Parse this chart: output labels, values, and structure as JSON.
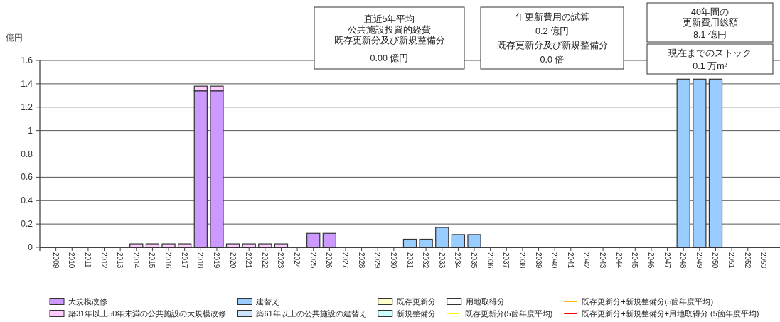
{
  "chart_data": {
    "type": "bar",
    "ylabel": "億円",
    "stacked": true,
    "grid": "y",
    "legend": "bottom",
    "categories": [
      "2009",
      "2010",
      "2011",
      "2012",
      "2013",
      "2014",
      "2015",
      "2016",
      "2017",
      "2018",
      "2019",
      "2020",
      "2021",
      "2022",
      "2023",
      "2024",
      "2025",
      "2026",
      "2027",
      "2028",
      "2029",
      "2030",
      "2031",
      "2032",
      "2033",
      "2034",
      "2035",
      "2036",
      "2037",
      "2038",
      "2039",
      "2040",
      "2041",
      "2042",
      "2043",
      "2044",
      "2045",
      "2046",
      "2047",
      "2048",
      "2049",
      "2050",
      "2051",
      "2052",
      "2053"
    ],
    "ylim": [
      0,
      1.6
    ],
    "yticks": [
      0,
      0.2,
      0.4,
      0.6,
      0.8,
      1,
      1.2,
      1.4,
      1.6
    ],
    "series": [
      {
        "name": "大規模改修",
        "color": "#cc99ff",
        "values": [
          null,
          null,
          null,
          null,
          null,
          null,
          null,
          null,
          null,
          1.34,
          1.34,
          null,
          null,
          null,
          null,
          null,
          0.12,
          0.12,
          null,
          null,
          null,
          null,
          null,
          null,
          null,
          null,
          null,
          null,
          null,
          null,
          null,
          null,
          null,
          null,
          null,
          null,
          null,
          null,
          null,
          null,
          null,
          null,
          null,
          null,
          null
        ]
      },
      {
        "name": "築31年以上50年未満の公共施設の大規模改修",
        "color": "#ffccff",
        "values": [
          null,
          null,
          null,
          null,
          null,
          0.03,
          0.03,
          0.03,
          0.03,
          0.04,
          0.04,
          0.03,
          0.03,
          0.03,
          0.03,
          null,
          null,
          null,
          null,
          null,
          null,
          null,
          null,
          null,
          null,
          null,
          null,
          null,
          null,
          null,
          null,
          null,
          null,
          null,
          null,
          null,
          null,
          null,
          null,
          null,
          null,
          null,
          null,
          null,
          null
        ]
      },
      {
        "name": "建替え",
        "color": "#99ccff",
        "values": [
          null,
          null,
          null,
          null,
          null,
          null,
          null,
          null,
          null,
          null,
          null,
          null,
          null,
          null,
          null,
          null,
          null,
          null,
          null,
          null,
          null,
          null,
          0.07,
          0.07,
          0.17,
          0.11,
          0.11,
          null,
          null,
          null,
          null,
          null,
          null,
          null,
          null,
          null,
          null,
          null,
          null,
          1.44,
          1.44,
          1.44,
          null,
          null,
          null
        ]
      },
      {
        "name": "築61年以上の公共施設の建替え",
        "color": "#cce5ff",
        "values": [
          null,
          null,
          null,
          null,
          null,
          null,
          null,
          null,
          null,
          null,
          null,
          null,
          null,
          null,
          null,
          null,
          null,
          null,
          null,
          null,
          null,
          null,
          null,
          null,
          null,
          null,
          null,
          null,
          null,
          null,
          null,
          null,
          null,
          null,
          null,
          null,
          null,
          null,
          null,
          null,
          null,
          null,
          null,
          null,
          null
        ]
      },
      {
        "name": "既存更新分",
        "color": "#ffffcc",
        "values": [
          null,
          null,
          null,
          null,
          null,
          null,
          null,
          null,
          null,
          null,
          null,
          null,
          null,
          null,
          null,
          null,
          null,
          null,
          null,
          null,
          null,
          null,
          null,
          null,
          null,
          null,
          null,
          null,
          null,
          null,
          null,
          null,
          null,
          null,
          null,
          null,
          null,
          null,
          null,
          null,
          null,
          null,
          null,
          null,
          null
        ]
      },
      {
        "name": "新規整備分",
        "color": "#ccffff",
        "values": [
          null,
          null,
          null,
          null,
          null,
          null,
          null,
          null,
          null,
          null,
          null,
          null,
          null,
          null,
          null,
          null,
          null,
          null,
          null,
          null,
          null,
          null,
          null,
          null,
          null,
          null,
          null,
          null,
          null,
          null,
          null,
          null,
          null,
          null,
          null,
          null,
          null,
          null,
          null,
          null,
          null,
          null,
          null,
          null,
          null
        ]
      },
      {
        "name": "用地取得分",
        "color": "#ffffff",
        "values": [
          null,
          null,
          null,
          null,
          null,
          null,
          null,
          null,
          null,
          null,
          null,
          null,
          null,
          null,
          null,
          null,
          null,
          null,
          null,
          null,
          null,
          null,
          null,
          null,
          null,
          null,
          null,
          null,
          null,
          null,
          null,
          null,
          null,
          null,
          null,
          null,
          null,
          null,
          null,
          null,
          null,
          null,
          null,
          null,
          null
        ]
      },
      {
        "name": "既存更新分(5箇年度平均)",
        "type": "line",
        "color": "#ffff00",
        "values": [
          null,
          null,
          null,
          null,
          null,
          null,
          null,
          null,
          null,
          null,
          null,
          null,
          null,
          null,
          null,
          null,
          null,
          null,
          null,
          null,
          null,
          null,
          null,
          null,
          null,
          null,
          null,
          null,
          null,
          null,
          null,
          null,
          null,
          null,
          null,
          null,
          null,
          null,
          null,
          null,
          null,
          null,
          null,
          null,
          null
        ]
      },
      {
        "name": "既存更新分+新規整備分(5箇年度平均)",
        "type": "line",
        "color": "#ffc000",
        "values": [
          null,
          null,
          null,
          null,
          null,
          null,
          null,
          null,
          null,
          null,
          null,
          null,
          null,
          null,
          null,
          null,
          null,
          null,
          null,
          null,
          null,
          null,
          null,
          null,
          null,
          null,
          null,
          null,
          null,
          null,
          null,
          null,
          null,
          null,
          null,
          null,
          null,
          null,
          null,
          null,
          null,
          null,
          null,
          null,
          null
        ]
      },
      {
        "name": "既存更新分+新規整備分+用地取得分 (5箇年度平均)",
        "type": "line",
        "color": "#ff0000",
        "values": [
          null,
          null,
          null,
          null,
          null,
          null,
          null,
          null,
          null,
          null,
          null,
          null,
          null,
          null,
          null,
          null,
          null,
          null,
          null,
          null,
          null,
          null,
          null,
          null,
          null,
          null,
          null,
          null,
          null,
          null,
          null,
          null,
          null,
          null,
          null,
          null,
          null,
          null,
          null,
          null,
          null,
          null,
          null,
          null,
          null
        ]
      }
    ],
    "annotations": [
      "直近5年平均公共施設投資的経費既存更新分及び新規整備分",
      "0.00 億円",
      "年更新費用の試算",
      "0.2 億円",
      "既存更新分及び新規整備分",
      "0.0 倍",
      "40年間の更新費用総額",
      "8.1 億円",
      "現在までのストック",
      "0.1 万m²"
    ]
  }
}
